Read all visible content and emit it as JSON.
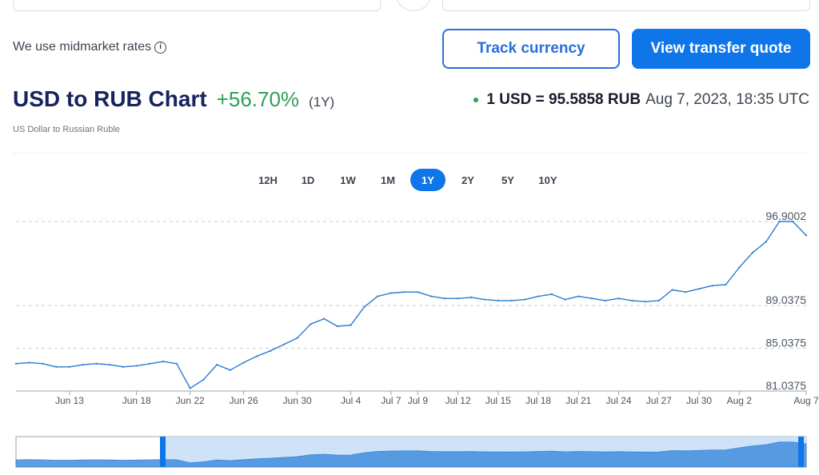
{
  "header": {
    "midmarket_text": "We use midmarket rates",
    "info_icon": "i",
    "track_label": "Track currency",
    "quote_label": "View transfer quote"
  },
  "title": {
    "text": "USD to RUB Chart",
    "change": "+56.70%",
    "period": "(1Y)",
    "subtitle": "US Dollar to Russian Ruble"
  },
  "rate": {
    "main": "1 USD = 95.5858 RUB",
    "date": "Aug 7, 2023, 18:35 UTC"
  },
  "ranges": [
    "12H",
    "1D",
    "1W",
    "1M",
    "1Y",
    "2Y",
    "5Y",
    "10Y"
  ],
  "active_range": "1Y",
  "colors": {
    "accent": "#0e76e8",
    "positive": "#2f9e5b",
    "line": "#2a7bd3",
    "navigator_fill": "#4a94e0"
  },
  "chart_data": {
    "type": "line",
    "title": "",
    "xlabel": "",
    "ylabel": "",
    "x_ticks": [
      "Jun 13",
      "Jun 18",
      "Jun 22",
      "Jun 26",
      "Jun 30",
      "Jul 4",
      "Jul 7",
      "Jul 9",
      "Jul 12",
      "Jul 15",
      "Jul 18",
      "Jul 21",
      "Jul 24",
      "Jul 27",
      "Jul 30",
      "Aug 2",
      "Aug 7"
    ],
    "y_ticks": [
      "96.9002",
      "89.0375",
      "85.0375",
      "81.0375"
    ],
    "ylim": [
      81.0375,
      96.9002
    ],
    "grid": "horizontal-dashed",
    "series": [
      {
        "x": [
          "Jun 9",
          "Jun 10",
          "Jun 11",
          "Jun 12",
          "Jun 13",
          "Jun 14",
          "Jun 15",
          "Jun 16",
          "Jun 17",
          "Jun 18",
          "Jun 19",
          "Jun 20",
          "Jun 21",
          "Jun 22",
          "Jun 23",
          "Jun 24",
          "Jun 25",
          "Jun 26",
          "Jun 27",
          "Jun 28",
          "Jun 29",
          "Jun 30",
          "Jul 1",
          "Jul 2",
          "Jul 3",
          "Jul 4",
          "Jul 5",
          "Jul 6",
          "Jul 7",
          "Jul 8",
          "Jul 9",
          "Jul 10",
          "Jul 11",
          "Jul 12",
          "Jul 13",
          "Jul 14",
          "Jul 15",
          "Jul 16",
          "Jul 17",
          "Jul 18",
          "Jul 19",
          "Jul 20",
          "Jul 21",
          "Jul 22",
          "Jul 23",
          "Jul 24",
          "Jul 25",
          "Jul 26",
          "Jul 27",
          "Jul 28",
          "Jul 29",
          "Jul 30",
          "Jul 31",
          "Aug 1",
          "Aug 2",
          "Aug 3",
          "Aug 4",
          "Aug 5",
          "Aug 6",
          "Aug 7"
        ],
        "values": [
          83.6,
          83.7,
          83.6,
          83.3,
          83.3,
          83.5,
          83.6,
          83.5,
          83.3,
          83.4,
          83.6,
          83.8,
          83.6,
          81.3,
          82.1,
          83.5,
          83.0,
          83.7,
          84.3,
          84.8,
          85.4,
          86.0,
          87.3,
          87.8,
          87.1,
          87.2,
          88.9,
          89.9,
          90.2,
          90.3,
          90.3,
          89.9,
          89.7,
          89.7,
          89.8,
          89.6,
          89.5,
          89.5,
          89.6,
          89.9,
          90.1,
          89.6,
          89.9,
          89.7,
          89.5,
          89.7,
          89.5,
          89.4,
          89.5,
          90.5,
          90.3,
          90.6,
          90.9,
          91.0,
          92.6,
          94.0,
          95.0,
          96.9,
          96.9,
          95.6
        ]
      }
    ]
  }
}
